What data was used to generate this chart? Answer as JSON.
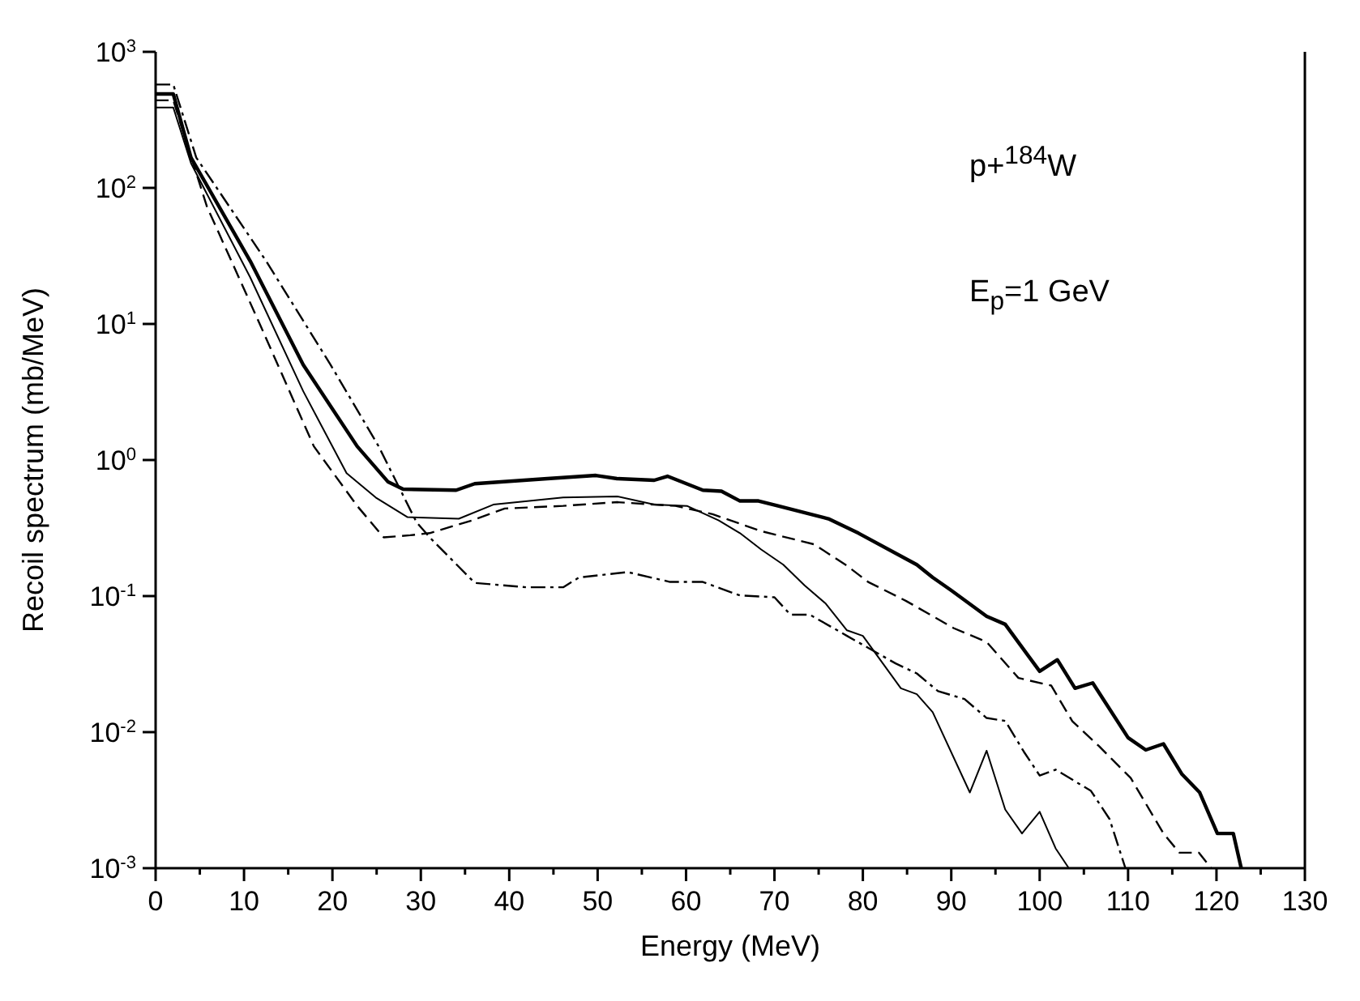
{
  "chart_data": {
    "type": "line",
    "xlabel": "Energy (MeV)",
    "ylabel": "Recoil spectrum (mb/MeV)",
    "log": "y",
    "marker": "none",
    "xlim": [
      0,
      130
    ],
    "xticks": [
      0,
      {
        "value": 5,
        "label": null
      },
      10,
      {
        "value": 15,
        "label": null
      },
      20,
      {
        "value": 25,
        "label": null
      },
      30,
      {
        "value": 35,
        "label": null
      },
      40,
      {
        "value": 45,
        "label": null
      },
      50,
      {
        "value": 55,
        "label": null
      },
      60,
      {
        "value": 65,
        "label": null
      },
      70,
      {
        "value": 75,
        "label": null
      },
      80,
      {
        "value": 85,
        "label": null
      },
      90,
      {
        "value": 95,
        "label": null
      },
      100,
      {
        "value": 105,
        "label": null
      },
      110,
      {
        "value": 115,
        "label": null
      },
      120,
      {
        "value": 125,
        "label": null
      },
      130
    ],
    "ylim": [
      0.001,
      1000
    ],
    "yticks": [
      {
        "value": 0.001,
        "label": "10$^{-3}$"
      },
      {
        "value": 0.01,
        "label": "10$^{-2}$"
      },
      {
        "value": 0.1,
        "label": "10$^{-1}$"
      },
      {
        "value": 1,
        "label": "10$^{0}$"
      },
      {
        "value": 10,
        "label": "10$^{1}$"
      },
      {
        "value": 100,
        "label": "10$^{2}$"
      },
      {
        "value": 1000,
        "label": "10$^{3}$"
      }
    ],
    "annotations": [
      "p+$^{184}$W",
      "E$_{p}$=1 GeV"
    ],
    "series": [
      {
        "color": "#000000",
        "line_style": "solid",
        "x": [
          0,
          2,
          4,
          10.7,
          16.7,
          22.8,
          26.3,
          28,
          34,
          36.1,
          44.3,
          49.8,
          52.2,
          56.4,
          57.9,
          61.9,
          64,
          66.1,
          68.2,
          70.4,
          76.1,
          79.5,
          86.1,
          87.9,
          90,
          94,
          96.1,
          100,
          102,
          104,
          106,
          110,
          112,
          114,
          116.1,
          118.1,
          120.1,
          121.9,
          122.8
        ],
        "values": [
          490,
          490,
          167,
          29,
          5.0,
          1.26,
          0.69,
          0.61,
          0.6,
          0.67,
          0.73,
          0.77,
          0.73,
          0.71,
          0.76,
          0.6,
          0.59,
          0.5,
          0.5,
          0.46,
          0.37,
          0.29,
          0.17,
          0.137,
          0.11,
          0.071,
          0.062,
          0.028,
          0.034,
          0.021,
          0.023,
          0.0091,
          0.0074,
          0.0082,
          0.0049,
          0.0036,
          0.0018,
          0.0018,
          0.001
        ]
      },
      {
        "color": "#000000",
        "line_style": "solid",
        "x": [
          0,
          2,
          4,
          10.7,
          16.7,
          21.6,
          24.9,
          28.5,
          34.3,
          38.2,
          46.1,
          52.2,
          56.4,
          60.1,
          63.7,
          66.1,
          68.5,
          71,
          73.4,
          75.8,
          78.2,
          80,
          84.3,
          86.1,
          87.9,
          92.1,
          94,
          96.1,
          98,
          100,
          101.8,
          103.3
        ],
        "values": [
          390,
          390,
          152,
          22,
          3.2,
          0.8,
          0.53,
          0.38,
          0.37,
          0.47,
          0.53,
          0.54,
          0.47,
          0.46,
          0.36,
          0.29,
          0.22,
          0.17,
          0.12,
          0.088,
          0.056,
          0.051,
          0.021,
          0.019,
          0.014,
          0.0036,
          0.0073,
          0.0027,
          0.0018,
          0.0026,
          0.0014,
          0.001
        ]
      },
      {
        "color": "#000000",
        "line_style": "dashed",
        "x": [
          0,
          2,
          5.8,
          11.9,
          17.9,
          22.8,
          25.8,
          28.8,
          31,
          35.8,
          39.5,
          46.1,
          52.2,
          58.8,
          63,
          68.5,
          74.5,
          78.2,
          80.6,
          84.9,
          90.3,
          94,
          97.6,
          101.3,
          103.7,
          106.7,
          110.3,
          114,
          115.8,
          118,
          119.4
        ],
        "values": [
          440,
          440,
          73,
          9.6,
          1.26,
          0.46,
          0.27,
          0.28,
          0.29,
          0.36,
          0.44,
          0.46,
          0.49,
          0.46,
          0.4,
          0.3,
          0.24,
          0.167,
          0.127,
          0.092,
          0.058,
          0.046,
          0.025,
          0.022,
          0.012,
          0.0079,
          0.0046,
          0.0018,
          0.0013,
          0.0013,
          0.001
        ]
      },
      {
        "color": "#000000",
        "line_style": "dashdot",
        "x": [
          0,
          2,
          4.6,
          12.5,
          19.8,
          25.2,
          29.5,
          31,
          36.1,
          41.9,
          46.1,
          47.9,
          53.4,
          58.2,
          61.9,
          66.1,
          70,
          71.8,
          74,
          78.2,
          83.7,
          86.1,
          88.5,
          91.5,
          94,
          96.1,
          98.2,
          100,
          101.8,
          105.8,
          107.9,
          109.7
        ],
        "values": [
          575,
          575,
          167,
          29,
          5.0,
          1.27,
          0.35,
          0.27,
          0.125,
          0.116,
          0.116,
          0.137,
          0.15,
          0.127,
          0.127,
          0.101,
          0.098,
          0.073,
          0.073,
          0.051,
          0.032,
          0.027,
          0.02,
          0.0175,
          0.0127,
          0.0121,
          0.0072,
          0.0048,
          0.0053,
          0.0037,
          0.0023,
          0.001
        ]
      }
    ]
  }
}
